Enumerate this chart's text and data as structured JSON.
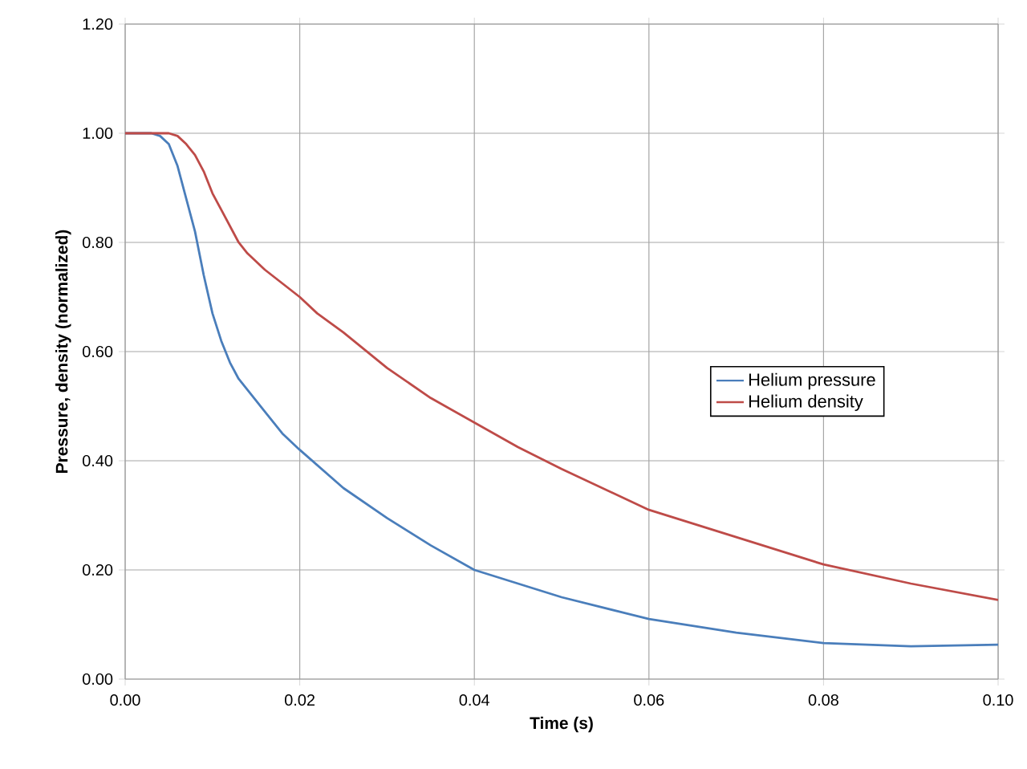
{
  "chart_data": {
    "type": "line",
    "xlabel": "Time (s)",
    "ylabel": "Pressure, density (normalized)",
    "xlim": [
      0,
      0.1
    ],
    "ylim": [
      0,
      1.2
    ],
    "xticks": [
      {
        "value": 0,
        "label": "0.00"
      },
      {
        "value": 0.02,
        "label": "0.02"
      },
      {
        "value": 0.04,
        "label": "0.04"
      },
      {
        "value": 0.06,
        "label": "0.06"
      },
      {
        "value": 0.08,
        "label": "0.08"
      },
      {
        "value": 0.1,
        "label": "0.10"
      }
    ],
    "yticks": [
      {
        "value": 0,
        "label": "0.00"
      },
      {
        "value": 0.2,
        "label": "0.20"
      },
      {
        "value": 0.4,
        "label": "0.40"
      },
      {
        "value": 0.6,
        "label": "0.60"
      },
      {
        "value": 0.8,
        "label": "0.80"
      },
      {
        "value": 1.0,
        "label": "1.00"
      },
      {
        "value": 1.2,
        "label": "1.20"
      }
    ],
    "grid": true,
    "legend": "center right",
    "marker": "none",
    "line_style": "solid",
    "series": [
      {
        "name": "Helium pressure",
        "color": "#4a7ebb",
        "x": [
          0,
          0.003,
          0.004,
          0.005,
          0.006,
          0.007,
          0.008,
          0.009,
          0.01,
          0.011,
          0.012,
          0.013,
          0.015,
          0.018,
          0.02,
          0.025,
          0.03,
          0.035,
          0.04,
          0.045,
          0.05,
          0.06,
          0.07,
          0.08,
          0.09,
          0.1
        ],
        "values": [
          1,
          1,
          0.995,
          0.98,
          0.94,
          0.88,
          0.82,
          0.74,
          0.67,
          0.62,
          0.58,
          0.55,
          0.51,
          0.45,
          0.42,
          0.35,
          0.295,
          0.245,
          0.2,
          0.175,
          0.15,
          0.11,
          0.085,
          0.066,
          0.06,
          0.063
        ]
      },
      {
        "name": "Helium density",
        "color": "#be4b48",
        "x": [
          0,
          0.005,
          0.006,
          0.007,
          0.008,
          0.009,
          0.01,
          0.011,
          0.012,
          0.013,
          0.014,
          0.016,
          0.018,
          0.02,
          0.022,
          0.025,
          0.03,
          0.035,
          0.04,
          0.045,
          0.05,
          0.06,
          0.07,
          0.08,
          0.09,
          0.1
        ],
        "values": [
          1,
          1,
          0.995,
          0.98,
          0.96,
          0.93,
          0.89,
          0.86,
          0.83,
          0.8,
          0.78,
          0.75,
          0.725,
          0.7,
          0.67,
          0.635,
          0.57,
          0.515,
          0.47,
          0.425,
          0.385,
          0.31,
          0.26,
          0.21,
          0.175,
          0.145
        ]
      }
    ]
  }
}
